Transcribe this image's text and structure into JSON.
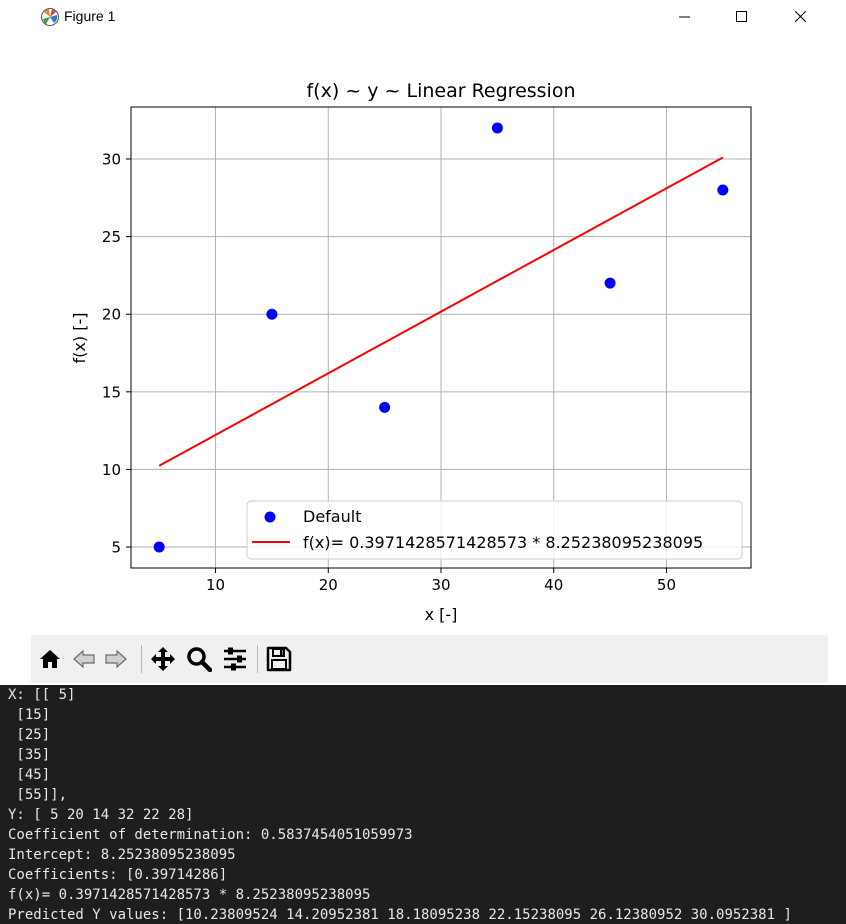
{
  "window": {
    "title": "Figure 1",
    "icon": "matplotlib-logo-icon",
    "controls": [
      "minimize-icon",
      "maximize-icon",
      "close-icon"
    ]
  },
  "toolbar": {
    "buttons": [
      "home-icon",
      "back-arrow-icon",
      "forward-arrow-icon",
      "pan-icon",
      "zoom-icon",
      "configure-subplots-icon",
      "save-icon"
    ]
  },
  "chart_data": {
    "type": "scatter",
    "title": "f(x) ~ y ~ Linear Regression",
    "xlabel": "x [-]",
    "ylabel": "f(x) [-]",
    "xlim": [
      2.5,
      57.5
    ],
    "ylim": [
      3.65,
      33.35
    ],
    "xticks": [
      10,
      20,
      30,
      40,
      50
    ],
    "yticks": [
      5,
      10,
      15,
      20,
      25,
      30
    ],
    "grid": true,
    "legend_position": "lower-right",
    "series": [
      {
        "name": "Default",
        "kind": "scatter",
        "color": "#0000ff",
        "x": [
          5,
          15,
          25,
          35,
          45,
          55
        ],
        "y": [
          5,
          20,
          14,
          32,
          22,
          28
        ]
      },
      {
        "name": "f(x)= 0.3971428571428573 * 8.25238095238095",
        "kind": "line",
        "color": "#ff0000",
        "x": [
          5,
          15,
          25,
          35,
          45,
          55
        ],
        "y": [
          10.23809524,
          14.20952381,
          18.18095238,
          22.15238095,
          26.12380952,
          30.0952381
        ]
      }
    ]
  },
  "console": {
    "lines": [
      "X: [[ 5]",
      " [15]",
      " [25]",
      " [35]",
      " [45]",
      " [55]],",
      "Y: [ 5 20 14 32 22 28]",
      "Coefficient of determination: 0.5837454051059973",
      "Intercept: 8.25238095238095",
      "Coefficients: [0.39714286]",
      "f(x)= 0.3971428571428573 * 8.25238095238095",
      "Predicted Y values: [10.23809524 14.20952381 18.18095238 22.15238095 26.12380952 30.0952381 ]"
    ]
  }
}
